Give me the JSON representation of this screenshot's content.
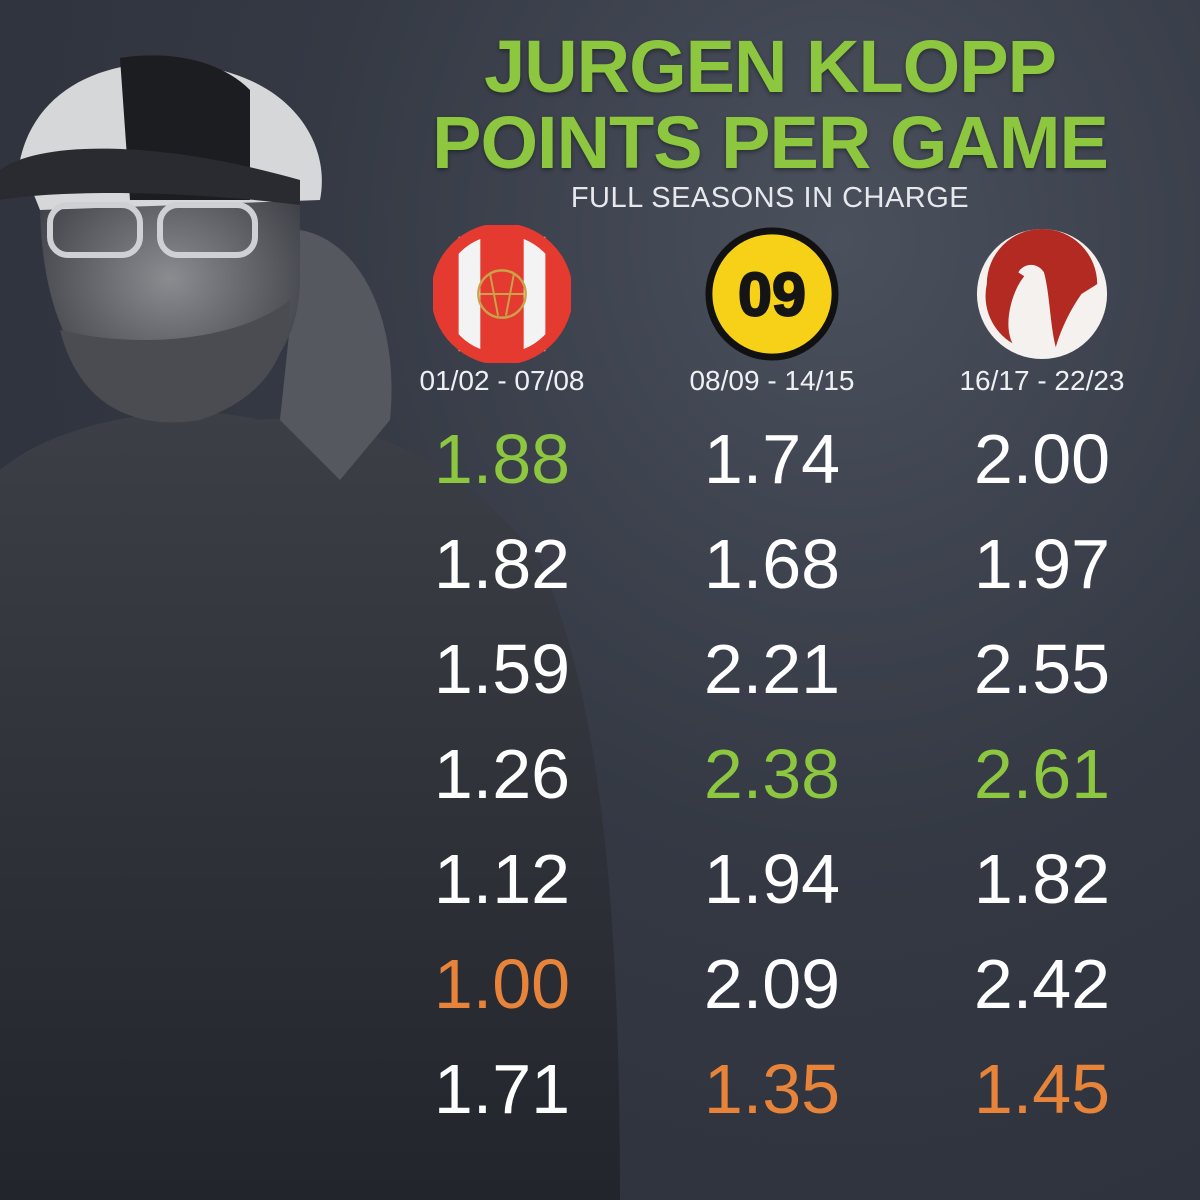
{
  "colors": {
    "best": "#8dc63f",
    "worst": "#e8833a",
    "normal": "#ffffff",
    "title": "#8dc63f"
  },
  "chart_data": {
    "type": "table",
    "title": [
      "JURGEN KLOPP",
      "POINTS PER GAME"
    ],
    "subtitle": "FULL SEASONS IN CHARGE",
    "columns": [
      {
        "logo": "mainz-05-crest",
        "logo_text": "",
        "season_range": "01/02 - 07/08",
        "values": [
          1.88,
          1.82,
          1.59,
          1.26,
          1.12,
          1.0,
          1.71
        ],
        "labels": [
          "1.88",
          "1.82",
          "1.59",
          "1.26",
          "1.12",
          "1.00",
          "1.71"
        ],
        "highlight": [
          "best",
          "normal",
          "normal",
          "normal",
          "normal",
          "worst",
          "normal"
        ]
      },
      {
        "logo": "borussia-dortmund-crest",
        "logo_text": "09",
        "season_range": "08/09 - 14/15",
        "values": [
          1.74,
          1.68,
          2.21,
          2.38,
          1.94,
          2.09,
          1.35
        ],
        "labels": [
          "1.74",
          "1.68",
          "2.21",
          "2.38",
          "1.94",
          "2.09",
          "1.35"
        ],
        "highlight": [
          "normal",
          "normal",
          "normal",
          "best",
          "normal",
          "normal",
          "worst"
        ]
      },
      {
        "logo": "liverpool-liverbird-crest",
        "logo_text": "",
        "season_range": "16/17 - 22/23",
        "values": [
          2.0,
          1.97,
          2.55,
          2.61,
          1.82,
          2.42,
          1.45
        ],
        "labels": [
          "2.00",
          "1.97",
          "2.55",
          "2.61",
          "1.82",
          "2.42",
          "1.45"
        ],
        "highlight": [
          "normal",
          "normal",
          "normal",
          "best",
          "normal",
          "normal",
          "worst"
        ]
      }
    ]
  }
}
